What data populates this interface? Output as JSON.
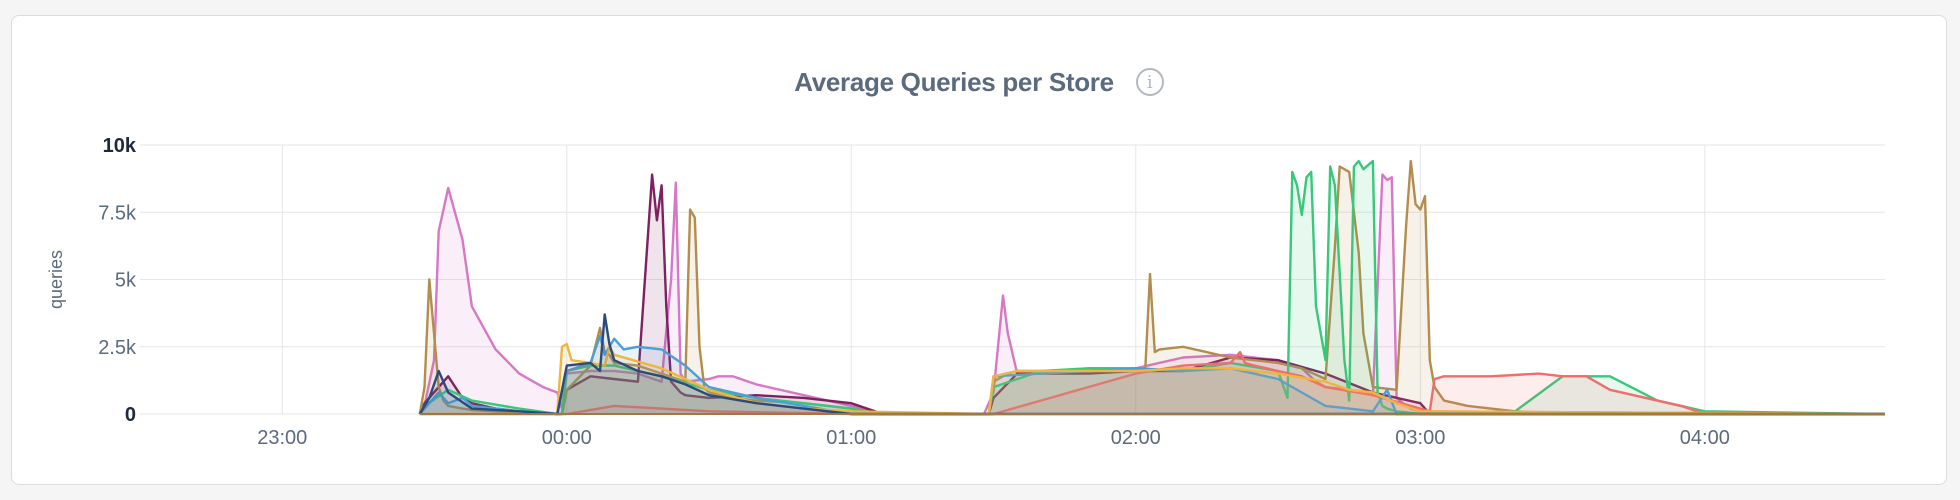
{
  "header": {
    "title": "Average Queries per Store",
    "info_icon": "info-icon"
  },
  "chart_data": {
    "type": "area",
    "title": "Average Queries per Store",
    "ylabel": "queries",
    "xlabel": "",
    "ylim": [
      0,
      10000
    ],
    "xlim": [
      "22:30",
      "04:38"
    ],
    "grid": true,
    "legend": "none",
    "y_ticks": [
      "0",
      "2.5k",
      "5k",
      "7.5k",
      "10k"
    ],
    "x_ticks": [
      "23:00",
      "00:00",
      "01:00",
      "02:00",
      "03:00",
      "04:00"
    ],
    "series": [
      {
        "color": "#d678c6",
        "x": [
          "23:29",
          "23:30",
          "23:32",
          "23:33",
          "23:35",
          "23:38",
          "23:40",
          "23:45",
          "23:50",
          "23:55",
          "23:58",
          "23:59",
          "00:00",
          "00:05",
          "00:10",
          "00:15",
          "00:20",
          "00:22",
          "00:23",
          "00:24",
          "00:25",
          "00:30",
          "00:32",
          "00:35",
          "00:40",
          "00:50",
          "01:00",
          "01:05",
          "01:06",
          "01:28",
          "01:30",
          "01:32",
          "01:33",
          "01:35",
          "01:40",
          "01:45",
          "01:50",
          "02:00",
          "02:10",
          "02:20",
          "02:30",
          "02:35",
          "02:38",
          "02:40",
          "02:45",
          "02:50",
          "02:52",
          "02:53",
          "02:54",
          "02:55",
          "02:57",
          "02:58",
          "03:00",
          "04:38"
        ],
        "y": [
          0,
          300,
          2000,
          6800,
          8400,
          6500,
          4000,
          2400,
          1500,
          1000,
          800,
          200,
          1500,
          1600,
          1600,
          1500,
          1200,
          5000,
          8600,
          1500,
          1200,
          1300,
          1400,
          1400,
          1100,
          700,
          300,
          100,
          0,
          0,
          800,
          4400,
          3000,
          1500,
          1500,
          1600,
          1700,
          1700,
          2100,
          2200,
          2000,
          1700,
          1200,
          1000,
          900,
          700,
          8900,
          8700,
          8800,
          600,
          300,
          200,
          100,
          0
        ]
      },
      {
        "color": "#7d2161",
        "x": [
          "23:29",
          "23:30",
          "23:33",
          "23:35",
          "23:38",
          "23:40",
          "23:45",
          "23:50",
          "23:55",
          "23:58",
          "23:59",
          "00:00",
          "00:05",
          "00:10",
          "00:15",
          "00:18",
          "00:19",
          "00:20",
          "00:21",
          "00:22",
          "00:23",
          "00:24",
          "00:25",
          "00:30",
          "00:40",
          "00:50",
          "01:00",
          "01:05",
          "01:06",
          "01:29",
          "01:30",
          "01:35",
          "01:40",
          "01:50",
          "02:00",
          "02:10",
          "02:20",
          "02:30",
          "02:40",
          "02:50",
          "03:00",
          "03:02",
          "04:38"
        ],
        "y": [
          0,
          400,
          1000,
          1400,
          600,
          400,
          200,
          100,
          50,
          0,
          0,
          900,
          1400,
          1300,
          1200,
          8900,
          7200,
          8500,
          4000,
          1200,
          1000,
          800,
          700,
          600,
          700,
          600,
          400,
          100,
          0,
          0,
          600,
          1500,
          1500,
          1500,
          1600,
          1600,
          2100,
          2000,
          1500,
          800,
          400,
          0,
          0
        ]
      },
      {
        "color": "#b28d4e",
        "x": [
          "23:29",
          "23:30",
          "23:31",
          "23:32",
          "23:33",
          "23:34",
          "23:35",
          "23:38",
          "23:40",
          "23:45",
          "23:50",
          "23:55",
          "23:58",
          "23:59",
          "00:00",
          "00:05",
          "00:07",
          "00:08",
          "00:09",
          "00:10",
          "00:15",
          "00:20",
          "00:25",
          "00:26",
          "00:27",
          "00:28",
          "00:29",
          "00:30",
          "00:35",
          "00:40",
          "00:50",
          "01:00",
          "01:05",
          "01:06",
          "01:29",
          "01:30",
          "01:33",
          "01:35",
          "01:40",
          "01:50",
          "02:02",
          "02:03",
          "02:04",
          "02:05",
          "02:10",
          "02:20",
          "02:30",
          "02:35",
          "02:40",
          "02:42",
          "02:43",
          "02:45",
          "02:47",
          "02:48",
          "02:50",
          "02:55",
          "02:57",
          "02:58",
          "02:59",
          "03:00",
          "03:01",
          "03:02",
          "03:03",
          "03:05",
          "03:10",
          "03:20",
          "03:30",
          "04:38"
        ],
        "y": [
          0,
          1000,
          5000,
          3000,
          1000,
          500,
          300,
          200,
          150,
          100,
          50,
          0,
          0,
          0,
          900,
          1800,
          3200,
          2300,
          2200,
          1900,
          1800,
          1500,
          1200,
          7600,
          7300,
          2500,
          1000,
          800,
          600,
          500,
          400,
          200,
          50,
          0,
          0,
          1200,
          1500,
          1600,
          1600,
          1600,
          1700,
          5200,
          2300,
          2400,
          2500,
          2100,
          1900,
          1700,
          1300,
          6200,
          9200,
          9000,
          6000,
          3000,
          1000,
          900,
          7000,
          9400,
          7800,
          7600,
          8100,
          2000,
          1000,
          500,
          300,
          100,
          0,
          0
        ]
      },
      {
        "color": "#37c87a",
        "x": [
          "23:29",
          "23:30",
          "23:35",
          "23:40",
          "23:50",
          "23:58",
          "23:59",
          "00:00",
          "00:05",
          "00:10",
          "00:20",
          "00:30",
          "00:40",
          "00:50",
          "01:00",
          "01:06",
          "01:29",
          "01:30",
          "01:40",
          "01:50",
          "02:00",
          "02:10",
          "02:20",
          "02:30",
          "02:32",
          "02:33",
          "02:34",
          "02:35",
          "02:36",
          "02:37",
          "02:38",
          "02:40",
          "02:41",
          "02:42",
          "02:44",
          "02:45",
          "02:46",
          "02:47",
          "02:48",
          "02:50",
          "02:51",
          "02:52",
          "02:53",
          "02:55",
          "03:00",
          "03:10",
          "03:20",
          "03:30",
          "03:35",
          "03:40",
          "03:50",
          "04:00",
          "04:38"
        ],
        "y": [
          0,
          300,
          900,
          500,
          200,
          0,
          0,
          1600,
          1800,
          1800,
          1400,
          900,
          600,
          400,
          200,
          0,
          0,
          1000,
          1600,
          1700,
          1700,
          1600,
          1900,
          1600,
          600,
          9000,
          8500,
          7400,
          8800,
          9000,
          4000,
          2000,
          9200,
          8500,
          2000,
          500,
          9200,
          9400,
          9100,
          9400,
          800,
          300,
          200,
          100,
          0,
          0,
          100,
          1400,
          1400,
          1400,
          500,
          100,
          0
        ]
      },
      {
        "color": "#f06d6d",
        "x": [
          "23:29",
          "00:00",
          "00:10",
          "00:20",
          "00:30",
          "01:00",
          "01:30",
          "02:00",
          "02:10",
          "02:20",
          "02:22",
          "02:23",
          "02:25",
          "02:30",
          "02:35",
          "02:40",
          "02:50",
          "03:00",
          "03:02",
          "03:03",
          "03:05",
          "03:15",
          "03:25",
          "03:30",
          "03:35",
          "03:40",
          "03:45",
          "03:50",
          "03:55",
          "04:00",
          "04:38"
        ],
        "y": [
          0,
          0,
          300,
          200,
          100,
          0,
          0,
          1500,
          1800,
          1900,
          2300,
          1900,
          1800,
          1600,
          1400,
          1000,
          700,
          200,
          100,
          1300,
          1400,
          1400,
          1500,
          1400,
          1400,
          900,
          700,
          500,
          300,
          0,
          0
        ]
      },
      {
        "color": "#4e9ed6",
        "x": [
          "23:29",
          "23:31",
          "23:33",
          "23:35",
          "23:38",
          "23:40",
          "23:45",
          "23:50",
          "23:58",
          "00:00",
          "00:05",
          "00:07",
          "00:08",
          "00:10",
          "00:12",
          "00:15",
          "00:20",
          "00:25",
          "00:30",
          "00:40",
          "00:50",
          "01:00",
          "01:29",
          "01:30",
          "01:40",
          "01:50",
          "02:00",
          "02:10",
          "02:20",
          "02:30",
          "02:35",
          "02:40",
          "02:45",
          "02:50",
          "02:53",
          "02:55",
          "04:38"
        ],
        "y": [
          0,
          400,
          800,
          400,
          600,
          300,
          200,
          100,
          0,
          1600,
          1900,
          2900,
          2200,
          2800,
          2400,
          2500,
          2400,
          1800,
          1000,
          600,
          300,
          0,
          0,
          1400,
          1500,
          1600,
          1700,
          1600,
          1700,
          1300,
          800,
          300,
          200,
          100,
          900,
          0,
          0
        ]
      },
      {
        "color": "#f0b53c",
        "x": [
          "23:29",
          "23:58",
          "23:59",
          "00:00",
          "00:01",
          "00:05",
          "00:08",
          "00:09",
          "00:10",
          "00:20",
          "00:30",
          "00:40",
          "00:50",
          "01:00",
          "01:29",
          "01:30",
          "01:35",
          "01:40",
          "02:00",
          "02:10",
          "02:20",
          "02:30",
          "02:40",
          "02:45",
          "02:50",
          "02:55",
          "03:00",
          "04:38"
        ],
        "y": [
          0,
          0,
          2500,
          2600,
          2000,
          1900,
          1800,
          2500,
          2200,
          1700,
          900,
          400,
          200,
          100,
          0,
          1400,
          1600,
          1600,
          1600,
          1700,
          1700,
          1500,
          1200,
          900,
          800,
          400,
          100,
          0
        ]
      },
      {
        "color": "#2c4a7c",
        "x": [
          "23:29",
          "23:31",
          "23:33",
          "23:35",
          "23:40",
          "23:50",
          "23:58",
          "00:00",
          "00:05",
          "00:07",
          "00:08",
          "00:09",
          "00:10",
          "00:15",
          "00:20",
          "00:25",
          "00:30",
          "00:40",
          "01:00",
          "04:38"
        ],
        "y": [
          0,
          600,
          1600,
          800,
          200,
          100,
          0,
          1800,
          1900,
          1600,
          3700,
          2600,
          2000,
          1600,
          1400,
          1100,
          700,
          400,
          0,
          0
        ]
      }
    ]
  }
}
